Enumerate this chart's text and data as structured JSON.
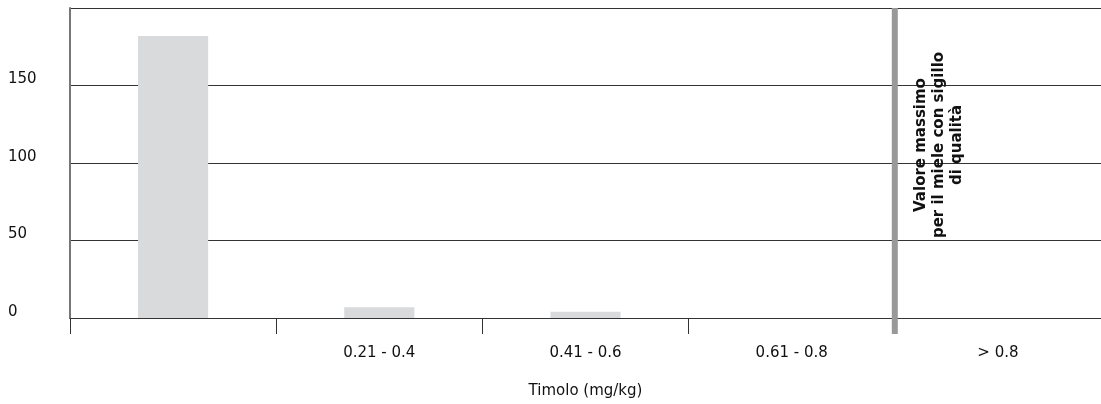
{
  "chart_data": {
    "type": "bar",
    "xlabel": "Timolo (mg/kg)",
    "categories": [
      null,
      "0.21 - 0.4",
      "0.41 - 0.6",
      "0.61 - 0.8",
      "> 0.8"
    ],
    "values": [
      182,
      7,
      4,
      0,
      0
    ],
    "color": "#d9dadc",
    "ylim": [
      0,
      200
    ],
    "yticks": [
      0,
      50,
      100,
      150,
      {
        "value": 200,
        "label": null
      }
    ],
    "grid": "y",
    "ref_lines": [
      {
        "axis": "x",
        "value": "> 0.8",
        "label": "Valore massimo\nper il miele con sigillo\ndi qualità",
        "color": "#999999"
      }
    ]
  }
}
